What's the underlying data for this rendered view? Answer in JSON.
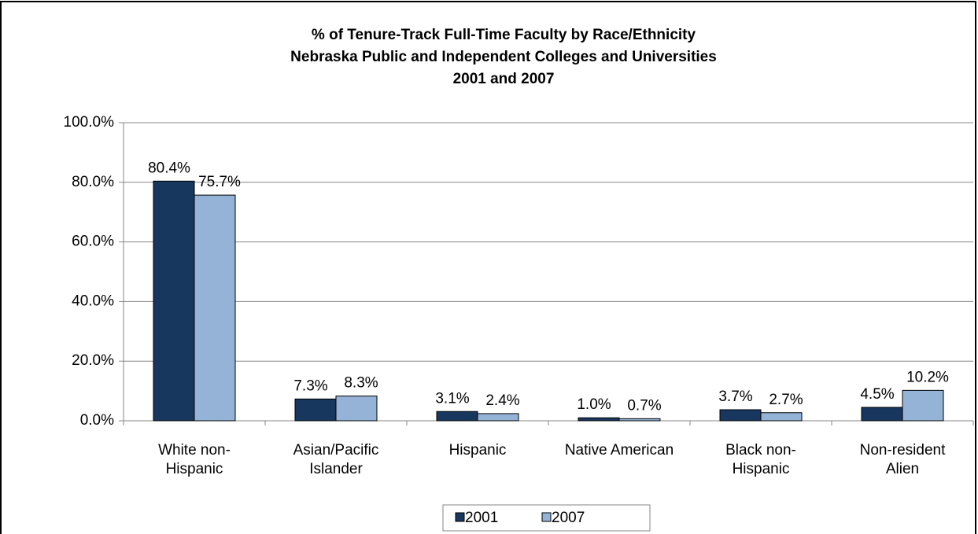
{
  "chart_data": {
    "type": "bar",
    "title": [
      "% of Tenure-Track Full-Time Faculty by Race/Ethnicity",
      "Nebraska Public and Independent Colleges and Universities",
      "2001 and 2007"
    ],
    "categories": [
      [
        "White non-",
        "Hispanic"
      ],
      [
        "Asian/Pacific",
        "Islander"
      ],
      [
        "Hispanic"
      ],
      [
        "Native American"
      ],
      [
        "Black non-",
        "Hispanic"
      ],
      [
        "Non-resident",
        "Alien"
      ]
    ],
    "series": [
      {
        "name": "2001",
        "color": "#17375e",
        "values": [
          80.4,
          7.3,
          3.1,
          1.0,
          3.7,
          4.5
        ],
        "value_labels": [
          "80.4%",
          "7.3%",
          "3.1%",
          "1.0%",
          "3.7%",
          "4.5%"
        ]
      },
      {
        "name": "2007",
        "color": "#95b3d7",
        "values": [
          75.7,
          8.3,
          2.4,
          0.7,
          2.7,
          10.2
        ],
        "value_labels": [
          "75.7%",
          "8.3%",
          "2.4%",
          "0.7%",
          "2.7%",
          "10.2%"
        ]
      }
    ],
    "ylim": [
      0,
      100
    ],
    "yticks": [
      {
        "value": 0,
        "label": "0.0%"
      },
      {
        "value": 20,
        "label": "20.0%"
      },
      {
        "value": 40,
        "label": "40.0%"
      },
      {
        "value": 60,
        "label": "60.0%"
      },
      {
        "value": 80,
        "label": "80.0%"
      },
      {
        "value": 100,
        "label": "100.0%"
      }
    ],
    "grid": true,
    "legend": "bottom"
  }
}
